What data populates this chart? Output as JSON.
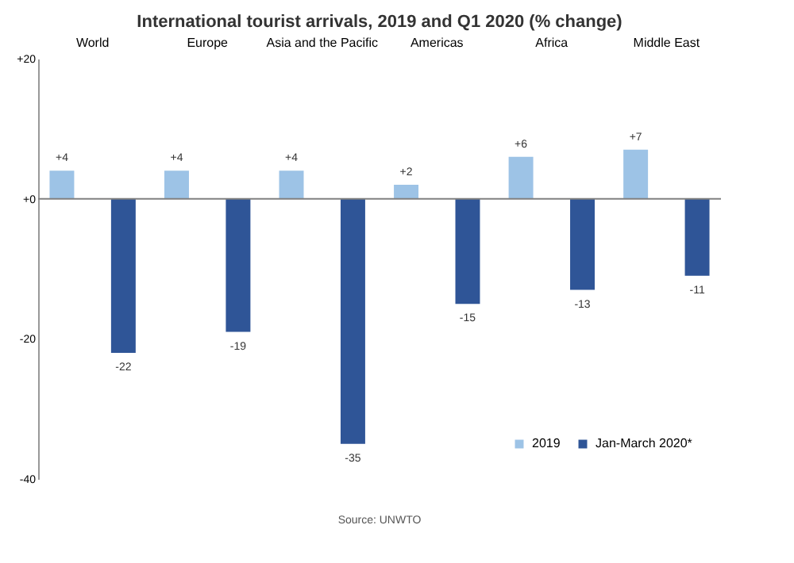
{
  "chart_data": {
    "type": "bar",
    "title": "International tourist arrivals, 2019 and Q1 2020 (% change)",
    "categories": [
      "World",
      "Europe",
      "Asia and the Pacific",
      "Americas",
      "Africa",
      "Middle East"
    ],
    "series": [
      {
        "name": "2019",
        "color": "#9dc3e6",
        "values": [
          4,
          4,
          4,
          2,
          6,
          7
        ],
        "value_labels": [
          "+4",
          "+4",
          "+4",
          "+2",
          "+6",
          "+7"
        ]
      },
      {
        "name": "Jan-March 2020*",
        "color": "#2f5597",
        "values": [
          -22,
          -19,
          -35,
          -15,
          -13,
          -11
        ],
        "value_labels": [
          "-22",
          "-19",
          "-35",
          "-15",
          "-13",
          "-11"
        ]
      }
    ],
    "ylim": [
      -40,
      20
    ],
    "yticks": [
      {
        "value": 20,
        "label": "+20"
      },
      {
        "value": 0,
        "label": "+0"
      },
      -20,
      -40
    ],
    "ref_lines": [
      {
        "axis": "y",
        "value": 0,
        "color": "#808080"
      }
    ],
    "grid": false,
    "legend": "bottom right",
    "annotations": [
      "Source: UNWTO"
    ]
  }
}
